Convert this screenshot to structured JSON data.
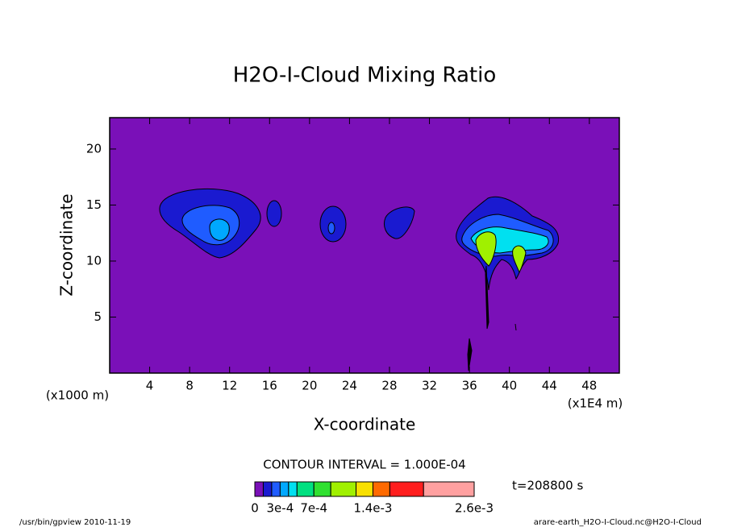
{
  "chart_data": {
    "type": "contour",
    "title": "H2O-I-Cloud Mixing Ratio",
    "xlabel": "X-coordinate",
    "ylabel": "Z-coordinate",
    "xunit": "(x1E4 m)",
    "yunit": "(x1000 m)",
    "xlim": [
      0,
      51
    ],
    "ylim": [
      0,
      22.8
    ],
    "xticks": [
      4,
      8,
      12,
      16,
      20,
      24,
      28,
      32,
      36,
      40,
      44,
      48
    ],
    "yticks": [
      5,
      10,
      15,
      20
    ],
    "contour_interval": "CONTOUR INTERVAL = 1.000E-04",
    "time": "t=208800 s",
    "footer_left": "/usr/bin/gpview  2010-11-19",
    "footer_right": "arare-earth_H2O-I-Cloud.nc@H2O-I-Cloud",
    "colorbar": {
      "levels": [
        0,
        0.0001,
        0.0002,
        0.0003,
        0.0004,
        0.0005,
        0.0007,
        0.0009,
        0.0012,
        0.0014,
        0.0016,
        0.002,
        0.0026
      ],
      "colors": [
        "#7a10b8",
        "#1a1ad0",
        "#1f5cff",
        "#00a8ff",
        "#00e0f0",
        "#00e080",
        "#30e030",
        "#a0f000",
        "#f8e000",
        "#ff6a00",
        "#ff1e1e",
        "#ffa0a0"
      ],
      "range": [
        0,
        0.0026
      ],
      "ticks": [
        0,
        {
          "value": 0.0003,
          "label": "3e-4"
        },
        {
          "value": 0.0007,
          "label": "7e-4"
        },
        {
          "value": 0.0014,
          "label": "1.4e-3"
        },
        {
          "value": 0.0026,
          "label": "2.6e-3"
        }
      ]
    }
  }
}
